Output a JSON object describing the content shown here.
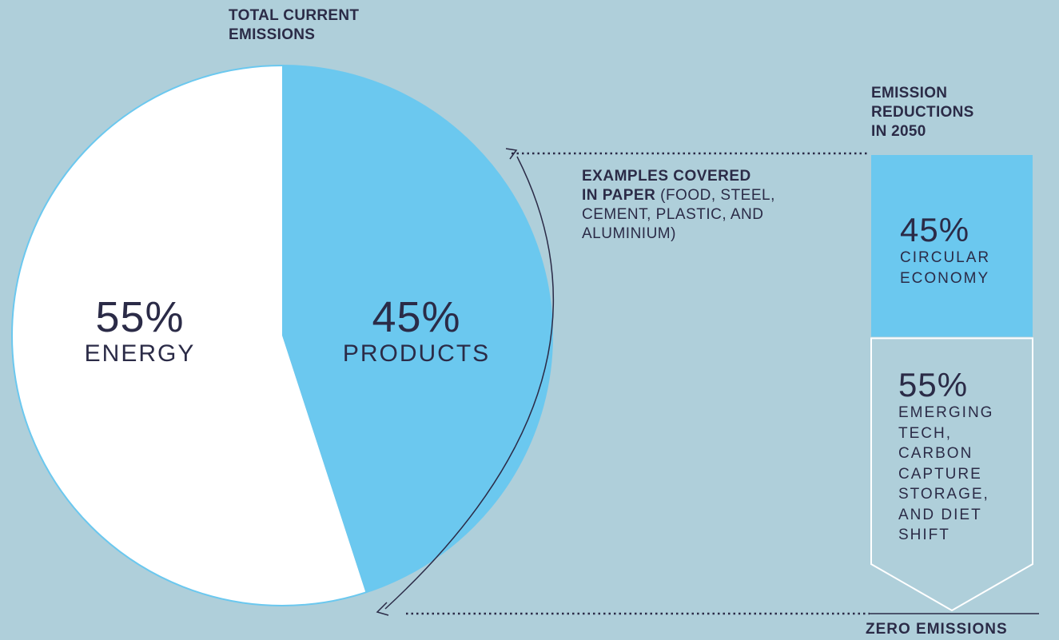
{
  "pie": {
    "title_line1": "TOTAL CURRENT",
    "title_line2": "EMISSIONS"
  },
  "examples": {
    "bold_line1": "EXAMPLES COVERED",
    "bold_line2": "IN PAPER",
    "rest_line2": " (FOOD, STEEL,",
    "line3": "CEMENT, PLASTIC, AND",
    "line4": "ALUMINIUM)"
  },
  "reductions": {
    "title_line1": "EMISSION",
    "title_line2": "REDUCTIONS",
    "title_line3": "IN 2050",
    "top": {
      "value": "45%",
      "lines": [
        "CIRCULAR",
        "ECONOMY"
      ]
    },
    "bottom": {
      "value": "55%",
      "lines": [
        "EMERGING",
        "TECH,",
        "CARBON",
        "CAPTURE",
        "STORAGE,",
        "AND DIET",
        "SHIFT"
      ]
    },
    "zero_label": "ZERO EMISSIONS"
  },
  "colors": {
    "background": "#afcfda",
    "products": "#6bc8ef",
    "energy": "#ffffff",
    "text": "#2b2b47",
    "box_bottom": "#afcfda"
  },
  "chart_data": [
    {
      "type": "pie",
      "title": "TOTAL CURRENT EMISSIONS",
      "slices": [
        {
          "label": "ENERGY",
          "value": 55,
          "display": "55%",
          "color": "#ffffff"
        },
        {
          "label": "PRODUCTS",
          "value": 45,
          "display": "45%",
          "color": "#6bc8ef"
        }
      ]
    },
    {
      "type": "bar",
      "title": "EMISSION REDUCTIONS IN 2050",
      "stacked": true,
      "segments": [
        {
          "label": "CIRCULAR ECONOMY",
          "value": 45,
          "display": "45%",
          "color": "#6bc8ef"
        },
        {
          "label": "EMERGING TECH, CARBON CAPTURE STORAGE, AND DIET SHIFT",
          "value": 55,
          "display": "55%",
          "color": "#afcfda"
        }
      ],
      "end_label": "ZERO EMISSIONS"
    }
  ]
}
